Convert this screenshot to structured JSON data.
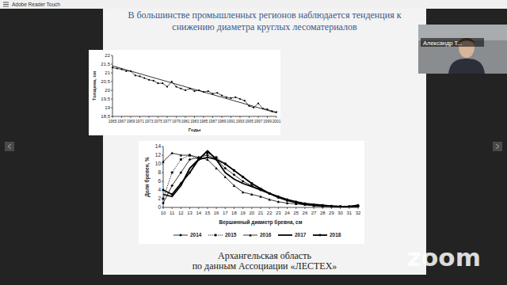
{
  "window": {
    "app_title": "Adobe Reader Touch",
    "participant_name": "Александр Т...",
    "logo": "zoom"
  },
  "slide": {
    "title": [
      "В большинстве промышленных регионов наблюдается тенденция к",
      "снижению диаметра круглых лесоматериалов"
    ],
    "caption": [
      "Архангельская область",
      "по данным Ассоциации «ЛЕСТЕХ»"
    ]
  },
  "chart_data": [
    {
      "type": "line",
      "x_label": "Годы",
      "y_label": "Толщина, см",
      "x": [
        1965,
        1966,
        1967,
        1968,
        1969,
        1970,
        1971,
        1972,
        1973,
        1974,
        1975,
        1976,
        1977,
        1978,
        1979,
        1980,
        1981,
        1982,
        1983,
        1984,
        1985,
        1986,
        1987,
        1988,
        1989,
        1990,
        1991,
        1992,
        1993,
        1994,
        1995,
        1996,
        1997,
        1998,
        1999,
        2000,
        2001
      ],
      "series": [
        {
          "values": [
            21.3,
            21.25,
            21.2,
            21.1,
            21.1,
            20.85,
            20.8,
            20.7,
            20.6,
            20.55,
            20.4,
            20.4,
            20.2,
            20.5,
            20.2,
            20.1,
            20.0,
            20.1,
            19.95,
            20.0,
            19.9,
            19.95,
            19.8,
            19.85,
            19.7,
            19.6,
            19.55,
            19.6,
            19.5,
            19.4,
            19.1,
            19.0,
            19.25,
            18.95,
            18.9,
            18.8,
            18.75
          ],
          "color": "#000000",
          "marker": "circle",
          "line_style": "solid"
        },
        {
          "x": [
            1965,
            2001
          ],
          "values": [
            21.4,
            18.7
          ],
          "color": "#000000",
          "marker": "none",
          "line_style": "solid"
        }
      ],
      "xlim": [
        1965,
        2001
      ],
      "xticks": [
        1965,
        1967,
        1969,
        1971,
        1973,
        1975,
        1977,
        1979,
        1981,
        1983,
        1985,
        1987,
        1989,
        1991,
        1993,
        1995,
        1997,
        1999,
        2001
      ],
      "ylim": [
        18.5,
        22
      ],
      "yticks": [
        {
          "value": 18.5,
          "label": "18,5"
        },
        19,
        {
          "value": 19.5,
          "label": "19,5"
        },
        20,
        {
          "value": 20.5,
          "label": "20,5"
        },
        21,
        {
          "value": 21.5,
          "label": "21,5"
        },
        22
      ],
      "grid": false
    },
    {
      "type": "line",
      "x_label": "Вершинный диаметр бревна, см",
      "y_label": "Доля бревен, %",
      "x": [
        10,
        11,
        12,
        13,
        14,
        15,
        16,
        17,
        18,
        19,
        20,
        21,
        22,
        23,
        24,
        25,
        26,
        27,
        28,
        29,
        30,
        31,
        32
      ],
      "series": [
        {
          "name": "2014",
          "color": "#000000",
          "marker": "diamond",
          "line_style": "solid",
          "values": [
            1,
            5,
            8,
            11,
            11.5,
            12,
            11,
            9,
            7.5,
            6,
            5,
            4,
            3.2,
            2.5,
            1.8,
            1.3,
            0.9,
            0.6,
            0.5,
            0.3,
            0.2,
            0.2,
            0.3
          ]
        },
        {
          "name": "2015",
          "color": "#000000",
          "marker": "square",
          "line_style": "dotted",
          "values": [
            2,
            8,
            11,
            12,
            11,
            12.5,
            11.5,
            10,
            8.5,
            7,
            5.5,
            4.2,
            3.2,
            2.3,
            1.6,
            1.1,
            0.8,
            0.5,
            0.4,
            0.3,
            0.2,
            0.2,
            0.2
          ]
        },
        {
          "name": "2016",
          "color": "#000000",
          "marker": "triangle",
          "line_style": "solid",
          "values": [
            10.5,
            12.5,
            12,
            12,
            11.5,
            11,
            9,
            7,
            5,
            3.5,
            3,
            2.5,
            1.8,
            1.3,
            1,
            0.8,
            0.6,
            0.4,
            0.3,
            0.2,
            0.2,
            0.1,
            0.1
          ]
        },
        {
          "name": "2017",
          "color": "#000000",
          "marker": "none",
          "line_style": "solid",
          "values": [
            3,
            2.5,
            5,
            9,
            11,
            13,
            11,
            8,
            6.5,
            5.5,
            4.8,
            4,
            3.2,
            2.5,
            1.8,
            1.3,
            0.9,
            0.7,
            0.5,
            0.3,
            0.2,
            0.2,
            0.4
          ]
        },
        {
          "name": "2018",
          "color": "#000000",
          "marker": "circle",
          "line_style": "solid",
          "values": [
            4,
            3,
            5.5,
            8,
            11,
            11.5,
            11,
            10,
            8.5,
            7,
            5.5,
            4.3,
            3.2,
            2.3,
            1.6,
            1.1,
            0.7,
            0.5,
            0.3,
            0.3,
            0.2,
            0.2,
            0.5
          ]
        }
      ],
      "xlim": [
        10,
        32
      ],
      "xticks": [
        10,
        11,
        12,
        13,
        14,
        15,
        16,
        17,
        18,
        19,
        20,
        21,
        22,
        23,
        24,
        25,
        26,
        27,
        28,
        29,
        30,
        31,
        32
      ],
      "ylim": [
        0,
        14
      ],
      "yticks": [
        0,
        2,
        4,
        6,
        8,
        10,
        12,
        14
      ],
      "legend": "bottom",
      "grid": false
    }
  ]
}
